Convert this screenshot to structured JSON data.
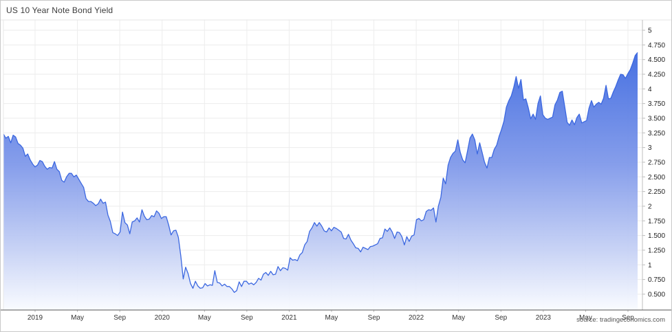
{
  "chart": {
    "title": "US 10 Year Note Bond Yield",
    "source": "source: tradingeconomics.com"
  },
  "chart_data": {
    "type": "area",
    "title": "US 10 Year Note Bond Yield",
    "series": [
      {
        "name": "US 10 Year Note Bond Yield (%)"
      }
    ],
    "frequency": "weekly",
    "x_start": "2018-10",
    "x_end": "2023-10",
    "x_tick_labels": [
      "2019",
      "May",
      "Sep",
      "2020",
      "May",
      "Sep",
      "2021",
      "May",
      "Sep",
      "2022",
      "May",
      "Sep",
      "2023",
      "May",
      "Sep"
    ],
    "y_tick_values": [
      5,
      4.75,
      4.5,
      4.25,
      4,
      3.75,
      3.5,
      3.25,
      3,
      2.75,
      2.5,
      2.25,
      2,
      1.75,
      1.5,
      1.25,
      1,
      0.75,
      0.5
    ],
    "y_tick_labels": [
      "5",
      "4.750",
      "4.500",
      "4.250",
      "4",
      "3.750",
      "3.500",
      "3.250",
      "3",
      "2.750",
      "2.500",
      "2.250",
      "2",
      "1.750",
      "1.500",
      "1.250",
      "1",
      "0.750",
      "0.500"
    ],
    "ylim": [
      0.23,
      5.18
    ],
    "grid": true,
    "legend": false,
    "colors": {
      "line": "#3b67e0",
      "fill_top": "#2b5cdd",
      "fill_mid": "#8099ea",
      "fill_low": "#c7d2f5",
      "fill_bottom": "#f9fbff",
      "grid_line": "#ebebeb",
      "axis_line": "#555555",
      "label_text": "#333333"
    },
    "values": [
      3.23,
      3.16,
      3.19,
      3.08,
      3.21,
      3.18,
      3.07,
      3.04,
      2.99,
      2.85,
      2.89,
      2.79,
      2.72,
      2.67,
      2.7,
      2.78,
      2.76,
      2.68,
      2.63,
      2.66,
      2.65,
      2.76,
      2.63,
      2.59,
      2.44,
      2.41,
      2.5,
      2.56,
      2.56,
      2.5,
      2.53,
      2.46,
      2.39,
      2.32,
      2.13,
      2.08,
      2.08,
      2.05,
      2.01,
      2.04,
      2.12,
      2.05,
      2.07,
      1.85,
      1.74,
      1.55,
      1.53,
      1.5,
      1.56,
      1.9,
      1.72,
      1.68,
      1.53,
      1.73,
      1.75,
      1.8,
      1.73,
      1.94,
      1.83,
      1.77,
      1.78,
      1.84,
      1.82,
      1.92,
      1.88,
      1.79,
      1.82,
      1.82,
      1.68,
      1.51,
      1.58,
      1.59,
      1.47,
      1.15,
      0.76,
      0.96,
      0.85,
      0.68,
      0.6,
      0.72,
      0.64,
      0.6,
      0.61,
      0.68,
      0.64,
      0.66,
      0.65,
      0.9,
      0.7,
      0.69,
      0.64,
      0.67,
      0.63,
      0.63,
      0.59,
      0.53,
      0.56,
      0.71,
      0.63,
      0.72,
      0.72,
      0.67,
      0.69,
      0.66,
      0.7,
      0.77,
      0.74,
      0.84,
      0.87,
      0.82,
      0.89,
      0.83,
      0.84,
      0.97,
      0.9,
      0.95,
      0.94,
      0.91,
      1.12,
      1.08,
      1.09,
      1.07,
      1.17,
      1.21,
      1.34,
      1.4,
      1.57,
      1.63,
      1.72,
      1.66,
      1.72,
      1.66,
      1.58,
      1.56,
      1.63,
      1.58,
      1.64,
      1.62,
      1.59,
      1.56,
      1.45,
      1.44,
      1.52,
      1.42,
      1.36,
      1.29,
      1.28,
      1.22,
      1.3,
      1.28,
      1.26,
      1.31,
      1.32,
      1.34,
      1.36,
      1.45,
      1.46,
      1.61,
      1.57,
      1.63,
      1.56,
      1.45,
      1.56,
      1.55,
      1.48,
      1.34,
      1.48,
      1.4,
      1.49,
      1.51,
      1.77,
      1.79,
      1.75,
      1.77,
      1.91,
      1.94,
      1.93,
      1.97,
      1.73,
      2.0,
      2.15,
      2.48,
      2.38,
      2.7,
      2.83,
      2.9,
      2.94,
      3.13,
      2.92,
      2.79,
      2.74,
      2.94,
      3.16,
      3.23,
      3.13,
      2.89,
      3.08,
      2.92,
      2.75,
      2.65,
      2.83,
      2.83,
      2.97,
      3.04,
      3.19,
      3.31,
      3.45,
      3.69,
      3.8,
      3.88,
      4.02,
      4.21,
      4.01,
      4.16,
      3.81,
      3.83,
      3.68,
      3.49,
      3.57,
      3.48,
      3.75,
      3.88,
      3.56,
      3.5,
      3.48,
      3.5,
      3.52,
      3.73,
      3.81,
      3.94,
      3.96,
      3.7,
      3.43,
      3.38,
      3.47,
      3.39,
      3.51,
      3.57,
      3.42,
      3.44,
      3.46,
      3.67,
      3.8,
      3.69,
      3.74,
      3.77,
      3.74,
      3.84,
      4.06,
      3.83,
      3.84,
      3.95,
      4.04,
      4.15,
      4.25,
      4.24,
      4.18,
      4.26,
      4.33,
      4.44,
      4.57,
      4.62
    ]
  }
}
